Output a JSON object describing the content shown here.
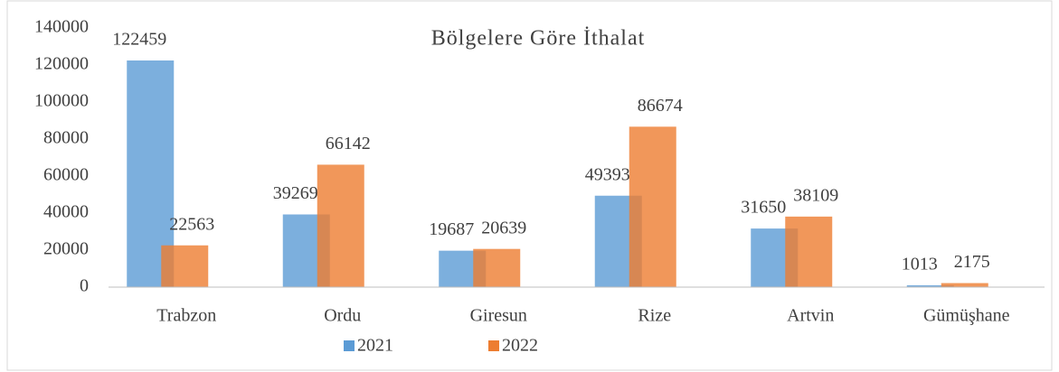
{
  "chart_data": {
    "type": "bar",
    "title": "Bölgelere Göre İthalat",
    "categories": [
      "Trabzon",
      "Ordu",
      "Giresun",
      "Rize",
      "Artvin",
      "Gümüşhane"
    ],
    "series": [
      {
        "name": "2021",
        "color": "#5b9bd5",
        "values": [
          122459,
          39269,
          19687,
          49393,
          31650,
          1013
        ]
      },
      {
        "name": "2022",
        "color": "#ed7d31",
        "values": [
          22563,
          66142,
          20639,
          86674,
          38109,
          2175
        ]
      }
    ],
    "ylim": [
      0,
      140000
    ],
    "yticks": [
      0,
      20000,
      40000,
      60000,
      80000,
      100000,
      120000,
      140000
    ],
    "grid": false,
    "legend": "bottom"
  }
}
